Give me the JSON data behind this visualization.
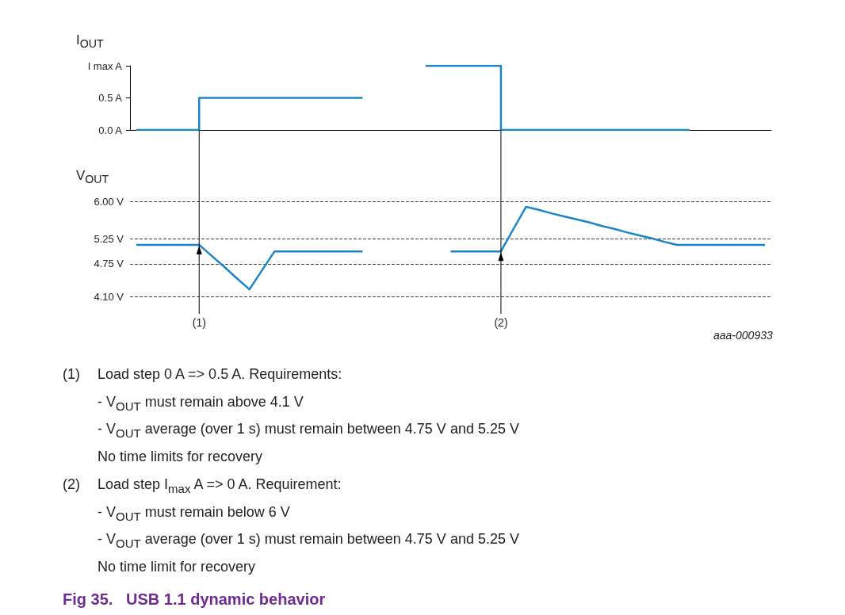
{
  "chart_data": [
    {
      "type": "step",
      "ylabel": "I$_{OUT}$",
      "color": "#1a86c8",
      "tick_labels": "y",
      "categories": [
        null,
        null,
        null,
        null,
        null,
        null,
        null,
        null,
        null,
        null,
        null,
        null,
        null,
        null,
        null,
        null,
        null,
        null,
        null,
        null,
        null,
        null,
        null,
        null,
        null,
        null,
        null,
        null,
        null,
        null,
        null,
        null,
        null,
        null,
        null,
        null,
        null,
        null,
        null,
        null,
        null,
        null,
        null,
        null,
        null,
        null,
        null,
        null,
        null,
        null,
        null
      ],
      "values": [
        0,
        0,
        0,
        0,
        0,
        0.5,
        0.5,
        0.5,
        0.5,
        0.5,
        0.5,
        0.5,
        0.5,
        0.5,
        0.5,
        0.5,
        0.5,
        0.5,
        0.5,
        null,
        null,
        null,
        null,
        1,
        1,
        1,
        1,
        1,
        1,
        0,
        0,
        0,
        0,
        0,
        0,
        0,
        0,
        0,
        0,
        0,
        0,
        0,
        0,
        0,
        0,
        null,
        null,
        null,
        null,
        null,
        null
      ],
      "ylim": [
        0,
        1
      ],
      "yticks": [
        {
          "value": 0,
          "label": "0.0 A"
        },
        {
          "value": 0.5,
          "label": "0.5 A"
        },
        {
          "value": 1,
          "label": "I max A"
        }
      ],
      "annotations": [
        "(1)",
        "(2)"
      ]
    },
    {
      "type": "line",
      "ylabel": "V$_{OUT}$",
      "color": "#1a86c8",
      "tick_labels": "y",
      "grid": "y",
      "title": "Fig 35.   USB 1.1 dynamic behavior",
      "categories": [
        null,
        null,
        null,
        null,
        null,
        null,
        null,
        null,
        null,
        null,
        null,
        null,
        null,
        null,
        null,
        null,
        null,
        null,
        null,
        null,
        null,
        null,
        null,
        null,
        null,
        null,
        null,
        null,
        null,
        null,
        null,
        null,
        null,
        null,
        null,
        null,
        null,
        null,
        null,
        null,
        null,
        null,
        null,
        null,
        null,
        null,
        null,
        null,
        null,
        null,
        null
      ],
      "values": [
        5.13,
        5.13,
        5.13,
        5.13,
        5.13,
        5.13,
        4.91,
        4.69,
        4.46,
        4.24,
        4.62,
        5.0,
        5.0,
        5.0,
        5.0,
        5.0,
        5.0,
        5.0,
        5.0,
        null,
        null,
        null,
        null,
        null,
        null,
        5.0,
        5.0,
        5.0,
        5.0,
        5.0,
        5.45,
        5.89,
        5.83,
        5.76,
        5.7,
        5.64,
        5.58,
        5.51,
        5.45,
        5.38,
        5.32,
        5.26,
        5.19,
        5.13,
        5.13,
        5.13,
        5.13,
        5.13,
        5.13,
        5.13,
        5.13
      ],
      "ylim": [
        4.1,
        6
      ],
      "yticks": [
        {
          "value": 4.1,
          "label": "4.10 V"
        },
        {
          "value": 4.75,
          "label": "4.75 V"
        },
        {
          "value": 5.25,
          "label": "5.25 V"
        },
        {
          "value": 6,
          "label": "6.00 V"
        }
      ],
      "annotations": [
        "aaa-000933",
        "(1) Load step 0 A => 0.5 A. Requirements:",
        "- V$_{OUT}$ must remain above 4.1 V",
        "- V$_{OUT}$ average (over 1 s) must remain between 4.75 V and 5.25 V",
        "No time limits for recovery",
        "(2) Load step I$_{max}$ A => 0 A. Requirement:",
        "- V$_{OUT}$ must remain below 6 V",
        "- V$_{OUT}$ average (over 1 s) must remain between 4.75 V and 5.25 V",
        "No time limit for recovery"
      ]
    }
  ]
}
